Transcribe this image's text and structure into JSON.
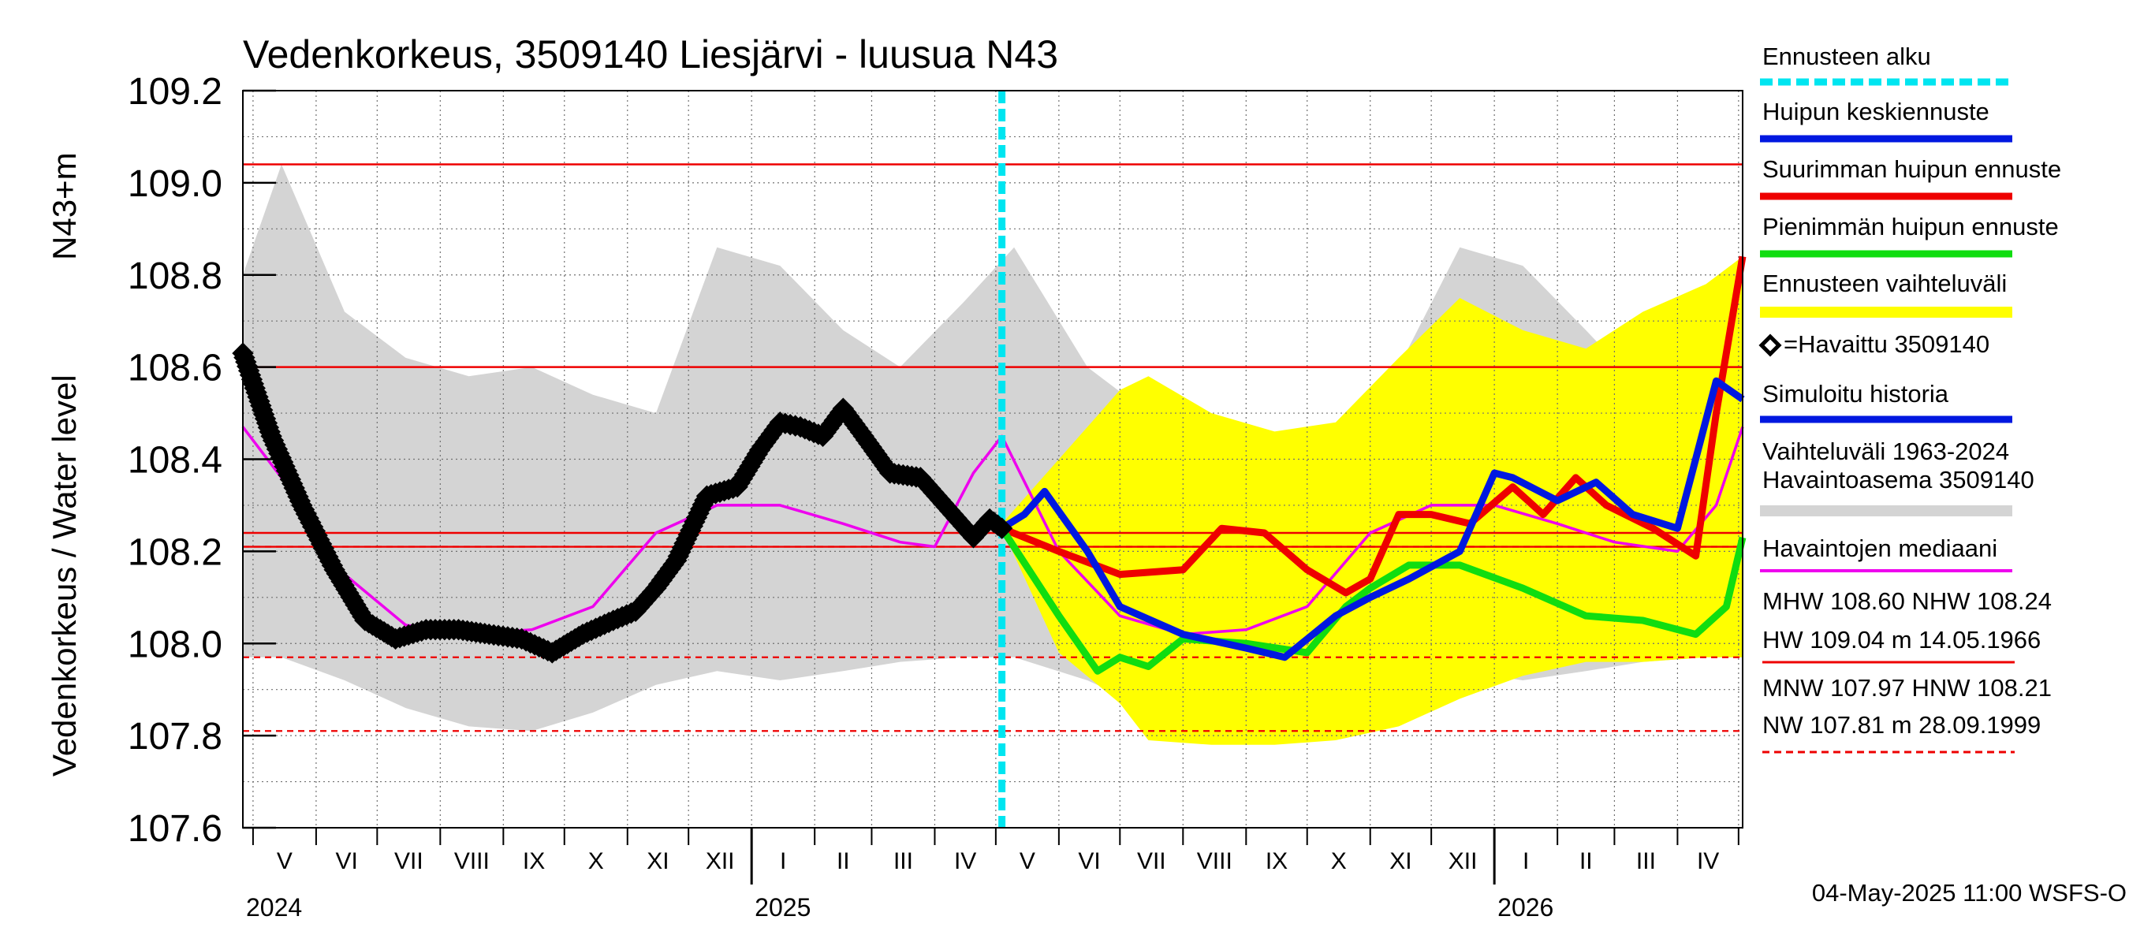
{
  "chart_data": {
    "type": "line",
    "title": "Vedenkorkeus, 3509140 Liesjärvi - luusua N43",
    "ylabel": "Vedenkorkeus / Water level",
    "ylabel_unit": "N43+m",
    "ylim": [
      107.6,
      109.2
    ],
    "yticks": [
      "109.2",
      "109.0",
      "108.8",
      "108.6",
      "108.4",
      "108.2",
      "108.0",
      "107.8",
      "107.6"
    ],
    "xlim": [
      "2024-04-26",
      "2026-05-03"
    ],
    "grid": true,
    "months": [
      "V",
      "VI",
      "VII",
      "VIII",
      "IX",
      "X",
      "XI",
      "XII",
      "I",
      "II",
      "III",
      "IV",
      "V",
      "VI",
      "VII",
      "VIII",
      "IX",
      "X",
      "XI",
      "XII",
      "I",
      "II",
      "III",
      "IV"
    ],
    "years": [
      "2024",
      "2025",
      "2026"
    ],
    "forecast_start": "2025-05-04",
    "reference_lines": {
      "solid": [
        109.04,
        108.6,
        108.24,
        108.21
      ],
      "dashed": [
        108.21,
        107.97,
        107.81
      ]
    },
    "colors": {
      "forecast_start": "#00e5f0",
      "mean_peak": "#0018e0",
      "max_peak": "#ee0000",
      "min_peak": "#10dd10",
      "forecast_range": "#ffff00",
      "observed": "#000000",
      "simulated": "#0018e0",
      "historical_range": "#d4d4d4",
      "median": "#ee00ee",
      "reference": "#ee0000"
    },
    "series": [
      {
        "key": "historical_range",
        "type": "band",
        "x": [
          "2024-04-26",
          "2024-05-15",
          "2024-06-15",
          "2024-07-15",
          "2024-08-15",
          "2024-09-15",
          "2024-10-15",
          "2024-11-15",
          "2024-12-15",
          "2025-01-15",
          "2025-02-15",
          "2025-03-15",
          "2025-04-15",
          "2025-05-10",
          "2025-06-15",
          "2025-07-15",
          "2025-08-15",
          "2025-09-15",
          "2025-10-15",
          "2025-11-15",
          "2025-12-15",
          "2026-01-15",
          "2026-02-15",
          "2026-03-15",
          "2026-04-15",
          "2026-05-03"
        ],
        "upper": [
          108.8,
          109.04,
          108.72,
          108.62,
          108.58,
          108.6,
          108.54,
          108.5,
          108.86,
          108.82,
          108.68,
          108.6,
          108.74,
          108.86,
          108.6,
          108.5,
          108.4,
          108.34,
          108.3,
          108.6,
          108.86,
          108.82,
          108.68,
          108.55,
          108.74,
          108.84
        ],
        "lower": [
          107.97,
          107.97,
          107.92,
          107.86,
          107.82,
          107.81,
          107.85,
          107.91,
          107.94,
          107.92,
          107.94,
          107.96,
          107.97,
          107.97,
          107.92,
          107.86,
          107.82,
          107.81,
          107.85,
          107.91,
          107.94,
          107.92,
          107.94,
          107.96,
          107.97,
          107.97
        ]
      },
      {
        "key": "forecast_range",
        "type": "band",
        "x": [
          "2025-05-04",
          "2025-06-01",
          "2025-07-01",
          "2025-07-15",
          "2025-08-15",
          "2025-09-15",
          "2025-10-15",
          "2025-11-15",
          "2025-12-15",
          "2026-01-15",
          "2026-02-15",
          "2026-03-15",
          "2026-04-15",
          "2026-05-03"
        ],
        "upper": [
          108.26,
          108.4,
          108.55,
          108.58,
          108.5,
          108.46,
          108.48,
          108.62,
          108.75,
          108.68,
          108.64,
          108.72,
          108.78,
          108.84
        ],
        "lower": [
          108.25,
          107.98,
          107.87,
          107.79,
          107.78,
          107.78,
          107.79,
          107.82,
          107.88,
          107.93,
          107.96,
          107.96,
          107.97,
          107.97
        ]
      },
      {
        "key": "median",
        "name": "Havaintojen mediaani",
        "x": [
          "2024-04-26",
          "2024-05-15",
          "2024-06-15",
          "2024-07-15",
          "2024-08-15",
          "2024-09-15",
          "2024-10-15",
          "2024-11-15",
          "2024-12-15",
          "2025-01-15",
          "2025-02-15",
          "2025-03-15",
          "2025-04-01",
          "2025-04-20",
          "2025-05-04",
          "2025-06-01",
          "2025-07-01",
          "2025-08-01",
          "2025-09-01",
          "2025-10-01",
          "2025-11-01",
          "2025-12-01",
          "2026-01-01",
          "2026-02-01",
          "2026-03-01",
          "2026-04-01",
          "2026-04-20",
          "2026-05-03"
        ],
        "y": [
          108.47,
          108.36,
          108.15,
          108.04,
          108.02,
          108.03,
          108.08,
          108.24,
          108.3,
          108.3,
          108.26,
          108.22,
          108.21,
          108.37,
          108.45,
          108.2,
          108.06,
          108.02,
          108.03,
          108.08,
          108.24,
          108.3,
          108.3,
          108.26,
          108.22,
          108.2,
          108.3,
          108.47
        ]
      },
      {
        "key": "observed",
        "name": "Havaittu 3509140",
        "x": [
          "2024-04-26",
          "2024-05-10",
          "2024-05-25",
          "2024-06-10",
          "2024-06-25",
          "2024-07-10",
          "2024-07-25",
          "2024-08-10",
          "2024-08-25",
          "2024-09-10",
          "2024-09-25",
          "2024-10-10",
          "2024-10-25",
          "2024-11-05",
          "2024-11-15",
          "2024-11-25",
          "2024-12-10",
          "2024-12-25",
          "2025-01-05",
          "2025-01-15",
          "2025-01-25",
          "2025-02-05",
          "2025-02-15",
          "2025-02-25",
          "2025-03-10",
          "2025-03-25",
          "2025-04-10",
          "2025-04-20",
          "2025-04-28",
          "2025-05-04"
        ],
        "y": [
          108.63,
          108.45,
          108.3,
          108.16,
          108.05,
          108.01,
          108.03,
          108.03,
          108.02,
          108.01,
          107.98,
          108.02,
          108.05,
          108.07,
          108.12,
          108.18,
          108.32,
          108.34,
          108.42,
          108.48,
          108.47,
          108.45,
          108.51,
          108.45,
          108.37,
          108.36,
          108.28,
          108.23,
          108.27,
          108.25
        ]
      },
      {
        "key": "max_peak",
        "name": "Suurimman huipun ennuste",
        "x": [
          "2025-05-04",
          "2025-06-01",
          "2025-07-01",
          "2025-08-01",
          "2025-08-20",
          "2025-09-10",
          "2025-10-01",
          "2025-10-20",
          "2025-11-01",
          "2025-11-15",
          "2025-12-01",
          "2025-12-20",
          "2026-01-10",
          "2026-01-25",
          "2026-02-10",
          "2026-02-25",
          "2026-03-20",
          "2026-04-10",
          "2026-04-20",
          "2026-05-03"
        ],
        "y": [
          108.25,
          108.2,
          108.15,
          108.16,
          108.25,
          108.24,
          108.16,
          108.11,
          108.14,
          108.28,
          108.28,
          108.26,
          108.34,
          108.28,
          108.36,
          108.3,
          108.25,
          108.19,
          108.5,
          108.84
        ]
      },
      {
        "key": "min_peak",
        "name": "Pienimmän huipun ennuste",
        "x": [
          "2025-05-04",
          "2025-06-01",
          "2025-06-20",
          "2025-07-01",
          "2025-07-15",
          "2025-08-01",
          "2025-09-01",
          "2025-10-01",
          "2025-10-20",
          "2025-11-01",
          "2025-11-20",
          "2025-12-15",
          "2026-01-15",
          "2026-02-15",
          "2026-03-15",
          "2026-04-10",
          "2026-04-25",
          "2026-05-03"
        ],
        "y": [
          108.25,
          108.06,
          107.94,
          107.97,
          107.95,
          108.01,
          108.0,
          107.98,
          108.08,
          108.12,
          108.17,
          108.17,
          108.12,
          108.06,
          108.05,
          108.02,
          108.08,
          108.23
        ]
      },
      {
        "key": "mean_peak",
        "name": "Huipun keskiennuste",
        "x": [
          "2025-05-04",
          "2025-05-15",
          "2025-05-25",
          "2025-06-15",
          "2025-07-01",
          "2025-08-01",
          "2025-09-01",
          "2025-09-20",
          "2025-10-15",
          "2025-11-01",
          "2025-11-20",
          "2025-12-15",
          "2026-01-01",
          "2026-01-10",
          "2026-02-01",
          "2026-02-20",
          "2026-03-10",
          "2026-04-01",
          "2026-04-20",
          "2026-05-03"
        ],
        "y": [
          108.25,
          108.28,
          108.33,
          108.2,
          108.08,
          108.02,
          107.99,
          107.97,
          108.06,
          108.1,
          108.14,
          108.2,
          108.37,
          108.36,
          108.31,
          108.35,
          108.28,
          108.25,
          108.57,
          108.53
        ]
      }
    ]
  },
  "legend": [
    {
      "key": "forecast_start",
      "label": "Ennusteen alku",
      "style": "dashed"
    },
    {
      "key": "mean_peak",
      "label": "Huipun keskiennuste",
      "style": "solid"
    },
    {
      "key": "max_peak",
      "label": "Suurimman huipun ennuste",
      "style": "solid"
    },
    {
      "key": "min_peak",
      "label": "Pienimmän huipun ennuste",
      "style": "solid"
    },
    {
      "key": "forecast_range",
      "label": "Ennusteen vaihteluväli",
      "style": "band"
    },
    {
      "key": "observed",
      "label": "=Havaittu 3509140",
      "style": "marker"
    },
    {
      "key": "simulated",
      "label": "Simuloitu historia",
      "style": "solid"
    },
    {
      "key": "historical_range",
      "label": "Vaihteluväli 1963-2024",
      "label2": " Havaintoasema 3509140",
      "style": "band"
    },
    {
      "key": "median",
      "label": "Havaintojen mediaani",
      "style": "thin"
    }
  ],
  "stats": {
    "line1": "MHW 108.60 NHW 108.24",
    "line2": "HW 109.04 m 14.05.1966",
    "line3": "MNW 107.97 HNW 108.21",
    "line4": "NW 107.81 m 28.09.1999"
  },
  "footer": "04-May-2025 11:00 WSFS-O"
}
